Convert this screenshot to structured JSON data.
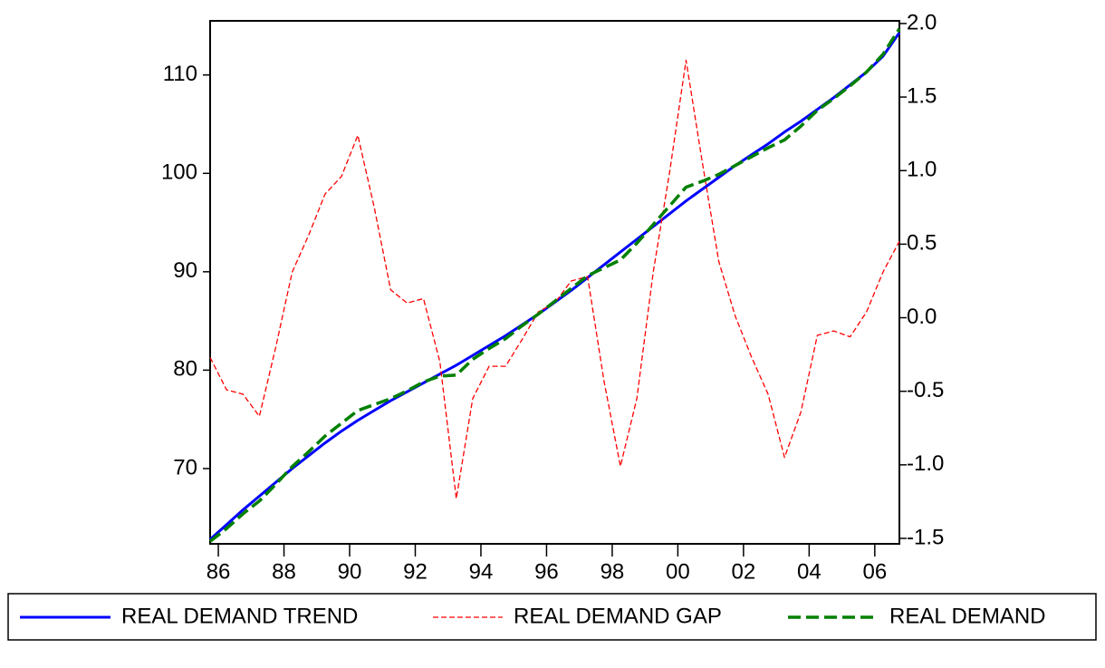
{
  "chart_data": {
    "type": "line",
    "x": [
      1985.75,
      1986.25,
      1986.75,
      1987.25,
      1987.75,
      1988.25,
      1988.75,
      1989.25,
      1989.75,
      1990.25,
      1990.75,
      1991.25,
      1991.75,
      1992.25,
      1992.75,
      1993.25,
      1993.75,
      1994.25,
      1994.75,
      1995.25,
      1995.75,
      1996.25,
      1996.75,
      1997.25,
      1997.75,
      1998.25,
      1998.75,
      1999.25,
      1999.75,
      2000.25,
      2000.75,
      2001.25,
      2001.75,
      2002.25,
      2002.75,
      2003.25,
      2003.75,
      2004.25,
      2004.75,
      2005.25,
      2005.75,
      2006.25,
      2006.75
    ],
    "xlim": [
      1985.75,
      2006.75
    ],
    "xticks": [
      {
        "value": 1986,
        "label": "86"
      },
      {
        "value": 1988,
        "label": "88"
      },
      {
        "value": 1990,
        "label": "90"
      },
      {
        "value": 1992,
        "label": "92"
      },
      {
        "value": 1994,
        "label": "94"
      },
      {
        "value": 1996,
        "label": "96"
      },
      {
        "value": 1998,
        "label": "98"
      },
      {
        "value": 2000,
        "label": "00"
      },
      {
        "value": 2002,
        "label": "02"
      },
      {
        "value": 2004,
        "label": "04"
      },
      {
        "value": 2006,
        "label": "06"
      }
    ],
    "ylim": [
      62.35,
      115.5
    ],
    "yticks": [
      70,
      80,
      90,
      100,
      110
    ],
    "y2lim": [
      -1.537,
      2.018
    ],
    "y2ticks": [
      -1.5,
      {
        "value": -1,
        "label": "-1.0"
      },
      -0.5,
      {
        "value": 0,
        "label": "0.0"
      },
      0.5,
      {
        "value": 1,
        "label": "1.0"
      },
      1.5,
      {
        "value": 2,
        "label": "2.0"
      }
    ],
    "grid": false,
    "legend": "bottom",
    "series": [
      {
        "name": "REAL DEMAND TREND",
        "color": "#0000ff",
        "style": "solid",
        "values": [
          62.8,
          64.3,
          65.8,
          67.2,
          68.6,
          70.0,
          71.3,
          72.6,
          73.8,
          74.9,
          75.9,
          76.9,
          77.8,
          78.7,
          79.6,
          80.5,
          81.5,
          82.5,
          83.5,
          84.6,
          85.7,
          86.9,
          88.1,
          89.4,
          90.7,
          92.0,
          93.3,
          94.6,
          95.9,
          97.2,
          98.4,
          99.6,
          100.8,
          101.9,
          103.0,
          104.2,
          105.3,
          106.5,
          107.7,
          109.0,
          110.3,
          111.9,
          114.3
        ]
      },
      {
        "name": "REAL DEMAND GAP",
        "color": "#ff0000",
        "style": "dashed",
        "axis": "y2",
        "values": [
          -0.27,
          -0.49,
          -0.52,
          -0.67,
          -0.2,
          0.31,
          0.56,
          0.84,
          0.96,
          1.24,
          0.75,
          0.19,
          0.1,
          0.13,
          -0.3,
          -1.23,
          -0.55,
          -0.33,
          -0.33,
          -0.15,
          0.04,
          0.1,
          0.25,
          0.28,
          -0.43,
          -1.01,
          -0.55,
          0.31,
          0.99,
          1.75,
          1.05,
          0.38,
          0.01,
          -0.27,
          -0.52,
          -0.95,
          -0.64,
          -0.12,
          -0.09,
          -0.13,
          0.04,
          0.31,
          0.52
        ]
      },
      {
        "name": "REAL DEMAND",
        "color": "#008000",
        "style": "long-dash",
        "values": [
          62.6,
          63.9,
          65.4,
          66.7,
          68.4,
          70.2,
          71.7,
          73.3,
          74.6,
          75.9,
          76.5,
          77.1,
          77.9,
          78.8,
          79.4,
          79.5,
          81.1,
          82.2,
          83.2,
          84.5,
          85.7,
          87.0,
          88.3,
          89.6,
          90.4,
          91.2,
          92.9,
          94.8,
          96.7,
          98.6,
          99.2,
          99.9,
          100.8,
          101.7,
          102.6,
          103.4,
          104.8,
          106.4,
          107.6,
          108.9,
          110.3,
          112.1,
          114.7
        ]
      }
    ]
  }
}
